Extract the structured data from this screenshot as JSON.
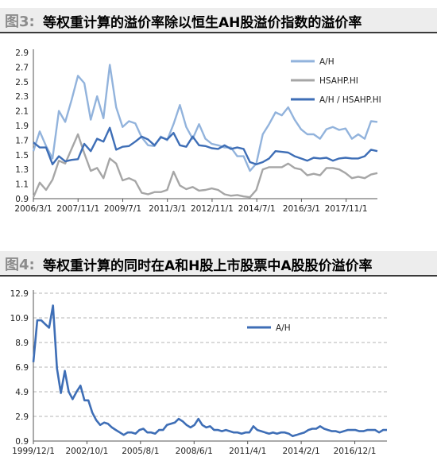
{
  "figures": [
    {
      "label": "图3:",
      "title": "等权重计算的溢价率除以恒生AH股溢价指数的溢价率"
    },
    {
      "label": "图4:",
      "title": "等权重计算的同时在A和H股上市股票中A股股价溢价率"
    }
  ],
  "chart_data": [
    {
      "type": "line",
      "title": "等权重计算的溢价率除以恒生AH股溢价指数的溢价率",
      "xlabel": "",
      "ylabel": "",
      "x_ticks": [
        "2006/3/1",
        "2007/11/1",
        "2009/7/1",
        "2011/3/1",
        "2012/11/1",
        "2014/7/1",
        "2016/3/1",
        "2017/11/1"
      ],
      "y_ticks": [
        "0.9",
        "1.1",
        "1.3",
        "1.5",
        "1.7",
        "1.9",
        "2.1",
        "2.3",
        "2.5",
        "2.7",
        "2.9"
      ],
      "ylim": [
        0.9,
        2.9
      ],
      "grid": false,
      "legend_position": "top-right",
      "series": [
        {
          "name": "A/H",
          "color": "#92b3dc",
          "values": [
            1.55,
            1.82,
            1.62,
            1.45,
            2.1,
            1.95,
            2.25,
            2.58,
            2.48,
            1.98,
            2.3,
            2.0,
            2.73,
            2.15,
            1.88,
            1.96,
            1.93,
            1.74,
            1.63,
            1.62,
            1.75,
            1.7,
            1.92,
            2.18,
            1.88,
            1.72,
            1.92,
            1.72,
            1.65,
            1.63,
            1.6,
            1.6,
            1.48,
            1.48,
            1.28,
            1.38,
            1.78,
            1.92,
            2.08,
            2.04,
            2.15,
            1.98,
            1.85,
            1.78,
            1.78,
            1.72,
            1.85,
            1.88,
            1.84,
            1.86,
            1.72,
            1.78,
            1.72,
            1.96,
            1.95
          ]
        },
        {
          "name": "HSAHP.HI",
          "color": "#a6a6a6",
          "values": [
            0.92,
            1.12,
            1.02,
            1.16,
            1.42,
            1.38,
            1.58,
            1.78,
            1.52,
            1.28,
            1.32,
            1.18,
            1.45,
            1.38,
            1.15,
            1.18,
            1.14,
            0.98,
            0.96,
            0.99,
            0.99,
            1.02,
            1.27,
            1.08,
            1.03,
            1.06,
            1.01,
            1.02,
            1.04,
            1.02,
            0.96,
            0.94,
            0.95,
            0.93,
            0.92,
            1.02,
            1.3,
            1.33,
            1.33,
            1.33,
            1.38,
            1.32,
            1.3,
            1.22,
            1.24,
            1.22,
            1.32,
            1.32,
            1.3,
            1.25,
            1.18,
            1.2,
            1.18,
            1.23,
            1.25
          ]
        },
        {
          "name": "A/H / HSAHP.HI",
          "color": "#3e6eb6",
          "values": [
            1.67,
            1.6,
            1.6,
            1.37,
            1.48,
            1.41,
            1.43,
            1.44,
            1.65,
            1.55,
            1.72,
            1.68,
            1.87,
            1.57,
            1.61,
            1.62,
            1.68,
            1.75,
            1.71,
            1.63,
            1.74,
            1.71,
            1.8,
            1.63,
            1.61,
            1.75,
            1.63,
            1.62,
            1.59,
            1.58,
            1.63,
            1.58,
            1.6,
            1.58,
            1.4,
            1.37,
            1.4,
            1.45,
            1.55,
            1.54,
            1.53,
            1.48,
            1.45,
            1.42,
            1.46,
            1.45,
            1.46,
            1.42,
            1.45,
            1.46,
            1.45,
            1.45,
            1.48,
            1.57,
            1.55
          ]
        }
      ]
    },
    {
      "type": "line",
      "title": "等权重计算的同时在A和H股上市股票中A股股价溢价率",
      "xlabel": "",
      "ylabel": "",
      "x_ticks": [
        "1999/12/1",
        "2002/10/1",
        "2005/8/1",
        "2008/6/1",
        "2011/4/1",
        "2014/2/1",
        "2016/12/1"
      ],
      "y_ticks": [
        "0.9",
        "2.9",
        "4.9",
        "6.9",
        "8.9",
        "10.9",
        "12.9"
      ],
      "ylim": [
        0.9,
        12.9
      ],
      "grid": true,
      "legend_position": "top-center",
      "series": [
        {
          "name": "A/H",
          "color": "#3e6eb6",
          "values": [
            7.3,
            10.7,
            10.7,
            10.4,
            10.1,
            11.9,
            6.8,
            4.8,
            6.6,
            4.9,
            4.3,
            4.9,
            5.4,
            4.2,
            4.2,
            3.2,
            2.6,
            2.2,
            2.4,
            2.3,
            2.0,
            1.8,
            1.6,
            1.4,
            1.6,
            1.6,
            1.5,
            1.8,
            1.9,
            1.6,
            1.6,
            1.5,
            1.8,
            1.8,
            2.2,
            2.3,
            2.4,
            2.7,
            2.5,
            2.2,
            2.0,
            2.2,
            2.7,
            2.2,
            2.0,
            2.1,
            1.8,
            1.8,
            1.7,
            1.8,
            1.7,
            1.6,
            1.6,
            1.5,
            1.6,
            1.6,
            2.1,
            1.8,
            1.7,
            1.6,
            1.5,
            1.6,
            1.5,
            1.6,
            1.6,
            1.5,
            1.3,
            1.4,
            1.5,
            1.6,
            1.8,
            1.9,
            1.9,
            2.1,
            1.9,
            1.8,
            1.7,
            1.7,
            1.6,
            1.7,
            1.8,
            1.8,
            1.8,
            1.7,
            1.7,
            1.8,
            1.8,
            1.8,
            1.6,
            1.8,
            1.8
          ]
        }
      ]
    }
  ]
}
